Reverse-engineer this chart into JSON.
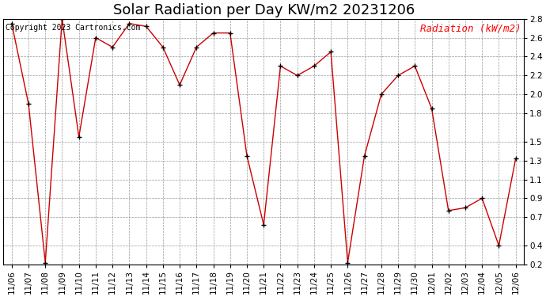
{
  "title": "Solar Radiation per Day KW/m2 20231206",
  "copyright": "Copyright 2023 Cartronics.com",
  "legend_label": "Radiation (kW/m2)",
  "dates": [
    "11/06",
    "11/07",
    "11/08",
    "11/09",
    "11/10",
    "11/11",
    "11/12",
    "11/13",
    "11/14",
    "11/15",
    "11/16",
    "11/17",
    "11/18",
    "11/19",
    "11/20",
    "11/21",
    "11/22",
    "11/23",
    "11/24",
    "11/25",
    "11/26",
    "11/27",
    "11/28",
    "11/29",
    "11/30",
    "12/01",
    "12/02",
    "12/03",
    "12/04",
    "12/05",
    "12/06"
  ],
  "values": [
    2.75,
    1.9,
    0.22,
    2.8,
    1.55,
    2.6,
    2.5,
    2.75,
    2.72,
    2.5,
    2.1,
    2.5,
    2.65,
    2.65,
    1.35,
    0.62,
    2.3,
    2.2,
    2.3,
    2.45,
    0.22,
    1.35,
    2.0,
    2.2,
    2.3,
    1.85,
    0.77,
    0.8,
    0.9,
    0.4,
    1.32
  ],
  "ylim_min": 0.2,
  "ylim_max": 2.8,
  "yticks": [
    0.2,
    0.4,
    0.7,
    0.9,
    1.1,
    1.3,
    1.5,
    1.8,
    2.0,
    2.2,
    2.4,
    2.6,
    2.8
  ],
  "line_color": "#cc0000",
  "marker_color": "#000000",
  "bg_color": "#ffffff",
  "grid_color": "#999999",
  "title_fontsize": 13,
  "copyright_fontsize": 7,
  "legend_fontsize": 9,
  "tick_fontsize": 7.5
}
